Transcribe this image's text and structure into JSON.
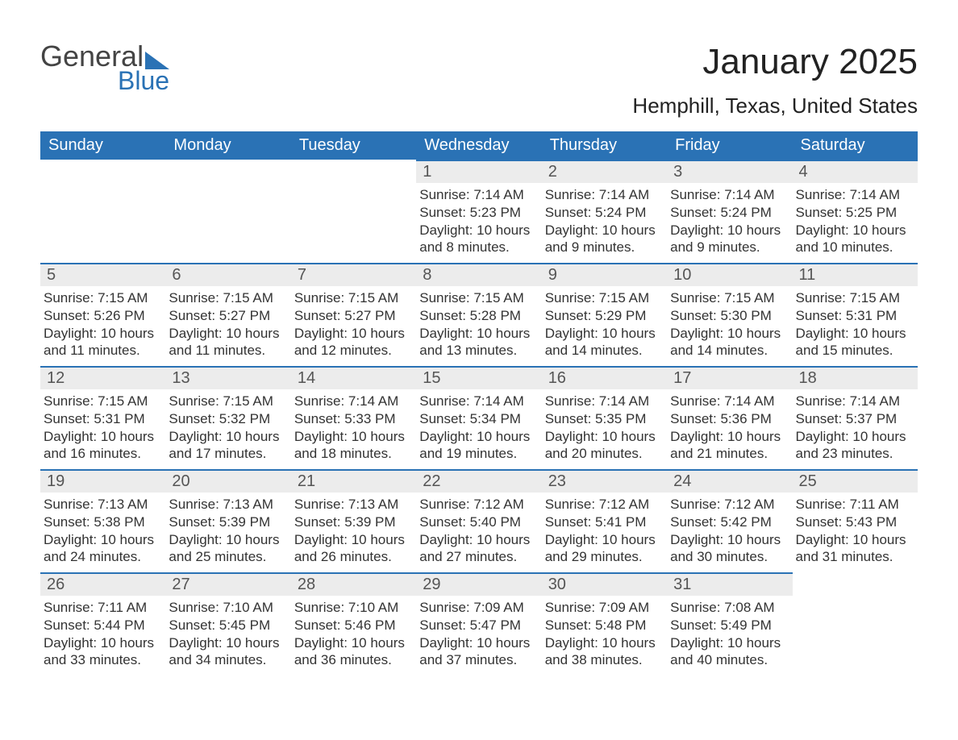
{
  "brand": {
    "part1": "General",
    "part2": "Blue"
  },
  "title": "January 2025",
  "location": "Hemphill, Texas, United States",
  "colors": {
    "header_bg": "#2a72b5",
    "header_text": "#ffffff",
    "daynum_bg": "#ececec",
    "daynum_text": "#555555",
    "body_text": "#333333",
    "row_divider": "#2a72b5",
    "page_bg": "#ffffff",
    "brand_blue": "#2a72b5"
  },
  "weekdays": [
    "Sunday",
    "Monday",
    "Tuesday",
    "Wednesday",
    "Thursday",
    "Friday",
    "Saturday"
  ],
  "weeks": [
    [
      null,
      null,
      null,
      {
        "day": "1",
        "sunrise": "7:14 AM",
        "sunset": "5:23 PM",
        "daylight": "10 hours and 8 minutes."
      },
      {
        "day": "2",
        "sunrise": "7:14 AM",
        "sunset": "5:24 PM",
        "daylight": "10 hours and 9 minutes."
      },
      {
        "day": "3",
        "sunrise": "7:14 AM",
        "sunset": "5:24 PM",
        "daylight": "10 hours and 9 minutes."
      },
      {
        "day": "4",
        "sunrise": "7:14 AM",
        "sunset": "5:25 PM",
        "daylight": "10 hours and 10 minutes."
      }
    ],
    [
      {
        "day": "5",
        "sunrise": "7:15 AM",
        "sunset": "5:26 PM",
        "daylight": "10 hours and 11 minutes."
      },
      {
        "day": "6",
        "sunrise": "7:15 AM",
        "sunset": "5:27 PM",
        "daylight": "10 hours and 11 minutes."
      },
      {
        "day": "7",
        "sunrise": "7:15 AM",
        "sunset": "5:27 PM",
        "daylight": "10 hours and 12 minutes."
      },
      {
        "day": "8",
        "sunrise": "7:15 AM",
        "sunset": "5:28 PM",
        "daylight": "10 hours and 13 minutes."
      },
      {
        "day": "9",
        "sunrise": "7:15 AM",
        "sunset": "5:29 PM",
        "daylight": "10 hours and 14 minutes."
      },
      {
        "day": "10",
        "sunrise": "7:15 AM",
        "sunset": "5:30 PM",
        "daylight": "10 hours and 14 minutes."
      },
      {
        "day": "11",
        "sunrise": "7:15 AM",
        "sunset": "5:31 PM",
        "daylight": "10 hours and 15 minutes."
      }
    ],
    [
      {
        "day": "12",
        "sunrise": "7:15 AM",
        "sunset": "5:31 PM",
        "daylight": "10 hours and 16 minutes."
      },
      {
        "day": "13",
        "sunrise": "7:15 AM",
        "sunset": "5:32 PM",
        "daylight": "10 hours and 17 minutes."
      },
      {
        "day": "14",
        "sunrise": "7:14 AM",
        "sunset": "5:33 PM",
        "daylight": "10 hours and 18 minutes."
      },
      {
        "day": "15",
        "sunrise": "7:14 AM",
        "sunset": "5:34 PM",
        "daylight": "10 hours and 19 minutes."
      },
      {
        "day": "16",
        "sunrise": "7:14 AM",
        "sunset": "5:35 PM",
        "daylight": "10 hours and 20 minutes."
      },
      {
        "day": "17",
        "sunrise": "7:14 AM",
        "sunset": "5:36 PM",
        "daylight": "10 hours and 21 minutes."
      },
      {
        "day": "18",
        "sunrise": "7:14 AM",
        "sunset": "5:37 PM",
        "daylight": "10 hours and 23 minutes."
      }
    ],
    [
      {
        "day": "19",
        "sunrise": "7:13 AM",
        "sunset": "5:38 PM",
        "daylight": "10 hours and 24 minutes."
      },
      {
        "day": "20",
        "sunrise": "7:13 AM",
        "sunset": "5:39 PM",
        "daylight": "10 hours and 25 minutes."
      },
      {
        "day": "21",
        "sunrise": "7:13 AM",
        "sunset": "5:39 PM",
        "daylight": "10 hours and 26 minutes."
      },
      {
        "day": "22",
        "sunrise": "7:12 AM",
        "sunset": "5:40 PM",
        "daylight": "10 hours and 27 minutes."
      },
      {
        "day": "23",
        "sunrise": "7:12 AM",
        "sunset": "5:41 PM",
        "daylight": "10 hours and 29 minutes."
      },
      {
        "day": "24",
        "sunrise": "7:12 AM",
        "sunset": "5:42 PM",
        "daylight": "10 hours and 30 minutes."
      },
      {
        "day": "25",
        "sunrise": "7:11 AM",
        "sunset": "5:43 PM",
        "daylight": "10 hours and 31 minutes."
      }
    ],
    [
      {
        "day": "26",
        "sunrise": "7:11 AM",
        "sunset": "5:44 PM",
        "daylight": "10 hours and 33 minutes."
      },
      {
        "day": "27",
        "sunrise": "7:10 AM",
        "sunset": "5:45 PM",
        "daylight": "10 hours and 34 minutes."
      },
      {
        "day": "28",
        "sunrise": "7:10 AM",
        "sunset": "5:46 PM",
        "daylight": "10 hours and 36 minutes."
      },
      {
        "day": "29",
        "sunrise": "7:09 AM",
        "sunset": "5:47 PM",
        "daylight": "10 hours and 37 minutes."
      },
      {
        "day": "30",
        "sunrise": "7:09 AM",
        "sunset": "5:48 PM",
        "daylight": "10 hours and 38 minutes."
      },
      {
        "day": "31",
        "sunrise": "7:08 AM",
        "sunset": "5:49 PM",
        "daylight": "10 hours and 40 minutes."
      },
      null
    ]
  ],
  "labels": {
    "sunrise": "Sunrise:",
    "sunset": "Sunset:",
    "daylight": "Daylight:"
  }
}
